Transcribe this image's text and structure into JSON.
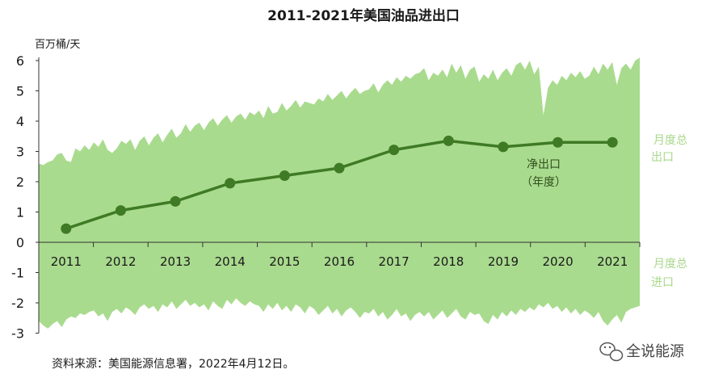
{
  "chart_data": {
    "type": "area",
    "title": "2011-2021年美国油品进出口",
    "ylabel": "百万桶/天",
    "ylim": [
      -3,
      6
    ],
    "yticks": [
      "6",
      "5",
      "4",
      "3",
      "2",
      "1",
      "0",
      "-1",
      "-2",
      "-3"
    ],
    "categories": [
      "2011",
      "2012",
      "2013",
      "2014",
      "2015",
      "2016",
      "2017",
      "2018",
      "2019",
      "2020",
      "2021"
    ],
    "series": [
      {
        "name": "净出口（年度）",
        "type": "line",
        "values": [
          0.45,
          1.05,
          1.35,
          1.95,
          2.2,
          2.45,
          3.05,
          3.35,
          3.15,
          3.3,
          3.3
        ]
      }
    ],
    "exports_monthly": [
      2.6,
      2.55,
      2.65,
      2.7,
      2.9,
      2.95,
      2.7,
      2.65,
      3.1,
      3.0,
      3.2,
      3.05,
      3.3,
      3.15,
      3.4,
      3.05,
      2.95,
      3.1,
      3.35,
      3.25,
      3.4,
      3.05,
      3.35,
      3.5,
      3.2,
      3.45,
      3.6,
      3.3,
      3.55,
      3.75,
      3.45,
      3.6,
      3.9,
      3.65,
      3.85,
      3.95,
      3.7,
      3.95,
      4.1,
      3.85,
      4.05,
      4.2,
      3.95,
      4.15,
      4.25,
      4.05,
      4.3,
      4.2,
      4.35,
      4.1,
      4.5,
      4.25,
      4.3,
      4.6,
      4.35,
      4.5,
      4.7,
      4.45,
      4.65,
      4.6,
      4.55,
      4.75,
      4.65,
      4.9,
      4.7,
      4.85,
      5.0,
      4.75,
      4.95,
      5.1,
      4.9,
      5.0,
      5.05,
      5.25,
      4.95,
      5.2,
      5.35,
      5.2,
      5.45,
      5.3,
      5.5,
      5.4,
      5.55,
      5.6,
      5.75,
      5.35,
      5.6,
      5.5,
      5.7,
      5.45,
      5.9,
      5.6,
      5.85,
      5.4,
      5.7,
      5.8,
      5.3,
      5.55,
      5.4,
      5.7,
      5.35,
      5.6,
      5.75,
      5.5,
      5.85,
      5.95,
      5.7,
      6.0,
      5.55,
      5.8,
      4.2,
      5.1,
      5.35,
      5.2,
      5.5,
      5.35,
      5.6,
      5.45,
      5.65,
      5.4,
      5.5,
      5.8,
      5.55,
      5.9,
      5.7,
      5.95,
      5.2,
      5.75,
      5.9,
      5.7,
      6.0,
      6.1
    ],
    "imports_monthly": [
      -2.6,
      -2.75,
      -2.85,
      -2.7,
      -2.6,
      -2.8,
      -2.55,
      -2.45,
      -2.5,
      -2.35,
      -2.4,
      -2.3,
      -2.25,
      -2.45,
      -2.35,
      -2.6,
      -2.3,
      -2.2,
      -2.35,
      -2.15,
      -2.25,
      -2.4,
      -2.15,
      -2.05,
      -2.2,
      -2.1,
      -2.3,
      -2.05,
      -2.15,
      -1.95,
      -2.2,
      -2.05,
      -1.9,
      -2.1,
      -2.0,
      -2.15,
      -2.05,
      -2.25,
      -1.95,
      -2.1,
      -2.2,
      -1.9,
      -2.05,
      -1.85,
      -2.0,
      -2.1,
      -1.95,
      -2.05,
      -2.1,
      -2.3,
      -2.05,
      -2.2,
      -2.0,
      -2.25,
      -2.1,
      -2.3,
      -2.05,
      -2.15,
      -2.35,
      -2.1,
      -2.2,
      -2.4,
      -2.25,
      -2.1,
      -2.35,
      -2.2,
      -2.45,
      -2.25,
      -2.15,
      -2.3,
      -2.5,
      -2.3,
      -2.35,
      -2.2,
      -2.45,
      -2.3,
      -2.55,
      -2.4,
      -2.2,
      -2.45,
      -2.35,
      -2.6,
      -2.4,
      -2.3,
      -2.45,
      -2.3,
      -2.55,
      -2.4,
      -2.25,
      -2.5,
      -2.35,
      -2.2,
      -2.45,
      -2.55,
      -2.3,
      -2.4,
      -2.35,
      -2.6,
      -2.7,
      -2.4,
      -2.55,
      -2.3,
      -2.45,
      -2.25,
      -2.4,
      -2.2,
      -2.3,
      -2.15,
      -2.25,
      -2.05,
      -2.15,
      -2.0,
      -2.2,
      -2.1,
      -2.3,
      -2.15,
      -2.35,
      -2.2,
      -2.4,
      -2.25,
      -2.35,
      -2.5,
      -2.3,
      -2.6,
      -2.75,
      -2.55,
      -2.4,
      -2.65,
      -2.3,
      -2.2,
      -2.15,
      -2.1
    ],
    "annotations": {
      "net_exports_line1": "净出口",
      "net_exports_line2": "（年度）",
      "exports_line1": "月度总",
      "exports_line2": "出口",
      "imports_line1": "月度总",
      "imports_line2": "进口"
    },
    "colors": {
      "area": "#a9db8e",
      "line": "#3f7a24",
      "marker": "#3f7a24",
      "annot_dark": "#2f4f1c",
      "annot_light": "#a8d88a"
    },
    "grid": false,
    "legend": "none"
  },
  "source": "资料来源：美国能源信息署，2022年4月12日。",
  "watermark": {
    "icon": "wechat-icon",
    "text": "全说能源"
  }
}
